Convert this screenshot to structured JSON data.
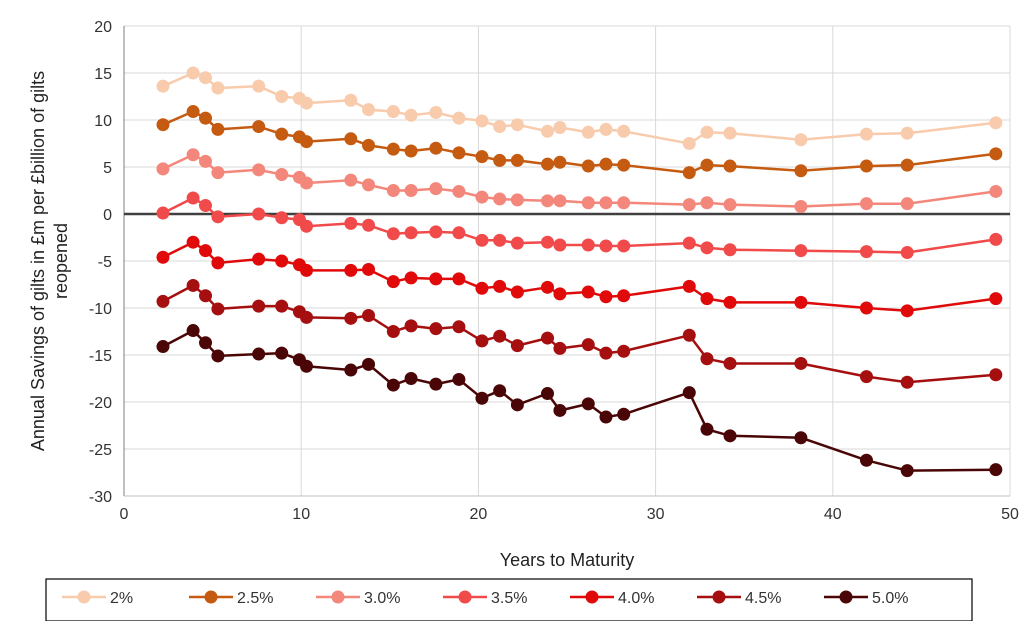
{
  "chart_data": {
    "type": "line",
    "title": "",
    "xlabel": "Years to Maturity",
    "ylabel": "Annual Savings of gilts in £m per £billion of gilts reopened",
    "ylabel_lines": [
      "Annual Savings of gilts in £m per £billion of gilts",
      "reopened"
    ],
    "xlim": [
      0,
      50
    ],
    "ylim": [
      -30,
      20
    ],
    "x_ticks": [
      0,
      10,
      20,
      30,
      40,
      50
    ],
    "y_ticks": [
      -30,
      -25,
      -20,
      -15,
      -10,
      -5,
      0,
      5,
      10,
      15,
      20
    ],
    "grid": true,
    "legend_position": "bottom",
    "x": [
      2.2,
      3.9,
      4.6,
      5.3,
      7.6,
      8.9,
      9.9,
      10.3,
      12.8,
      13.8,
      15.2,
      16.2,
      17.6,
      18.9,
      20.2,
      21.2,
      22.2,
      23.9,
      24.6,
      26.2,
      27.2,
      28.2,
      31.9,
      32.9,
      34.2,
      38.2,
      41.9,
      44.2,
      49.2
    ],
    "series": [
      {
        "name": "2%",
        "color": "#F8CBAD",
        "values": [
          13.6,
          15.0,
          14.5,
          13.4,
          13.6,
          12.5,
          12.3,
          11.8,
          12.1,
          11.1,
          10.9,
          10.5,
          10.8,
          10.2,
          9.9,
          9.3,
          9.5,
          8.8,
          9.2,
          8.7,
          9.0,
          8.8,
          7.5,
          8.7,
          8.6,
          7.9,
          8.5,
          8.6,
          9.7
        ]
      },
      {
        "name": "2.5%",
        "color": "#C55A11",
        "values": [
          9.5,
          10.9,
          10.2,
          9.0,
          9.3,
          8.5,
          8.2,
          7.7,
          8.0,
          7.3,
          6.9,
          6.7,
          7.0,
          6.5,
          6.1,
          5.7,
          5.7,
          5.3,
          5.5,
          5.1,
          5.3,
          5.2,
          4.4,
          5.2,
          5.1,
          4.6,
          5.1,
          5.2,
          6.4
        ]
      },
      {
        "name": "3.0%",
        "color": "#F4877C",
        "values": [
          4.8,
          6.3,
          5.6,
          4.4,
          4.7,
          4.2,
          3.9,
          3.3,
          3.6,
          3.1,
          2.5,
          2.5,
          2.7,
          2.4,
          1.8,
          1.6,
          1.5,
          1.4,
          1.4,
          1.2,
          1.2,
          1.2,
          1.0,
          1.2,
          1.0,
          0.8,
          1.1,
          1.1,
          2.4
        ]
      },
      {
        "name": "3.5%",
        "color": "#F14A4A",
        "values": [
          0.1,
          1.7,
          0.9,
          -0.3,
          0.0,
          -0.4,
          -0.6,
          -1.3,
          -1.0,
          -1.2,
          -2.1,
          -2.0,
          -1.9,
          -2.0,
          -2.8,
          -2.8,
          -3.1,
          -3.0,
          -3.3,
          -3.3,
          -3.4,
          -3.4,
          -3.1,
          -3.6,
          -3.8,
          -3.9,
          -4.0,
          -4.1,
          -2.7
        ]
      },
      {
        "name": "4.0%",
        "color": "#E00A0A",
        "values": [
          -4.6,
          -3.0,
          -3.9,
          -5.2,
          -4.8,
          -5.0,
          -5.4,
          -6.0,
          -6.0,
          -5.9,
          -7.2,
          -6.8,
          -6.9,
          -6.9,
          -7.9,
          -7.7,
          -8.3,
          -7.8,
          -8.5,
          -8.3,
          -8.8,
          -8.7,
          -7.7,
          -9.0,
          -9.4,
          -9.4,
          -10.0,
          -10.3,
          -9.0
        ]
      },
      {
        "name": "4.5%",
        "color": "#A50F0F",
        "values": [
          -9.3,
          -7.6,
          -8.7,
          -10.1,
          -9.8,
          -9.8,
          -10.4,
          -11.0,
          -11.1,
          -10.8,
          -12.5,
          -11.9,
          -12.2,
          -12.0,
          -13.5,
          -13.0,
          -14.0,
          -13.2,
          -14.3,
          -13.9,
          -14.8,
          -14.6,
          -12.9,
          -15.4,
          -15.9,
          -15.9,
          -17.3,
          -17.9,
          -17.1
        ]
      },
      {
        "name": "5.0%",
        "color": "#4A0606",
        "values": [
          -14.1,
          -12.4,
          -13.7,
          -15.1,
          -14.9,
          -14.8,
          -15.5,
          -16.2,
          -16.6,
          -16.0,
          -18.2,
          -17.5,
          -18.1,
          -17.6,
          -19.6,
          -18.8,
          -20.3,
          -19.1,
          -20.9,
          -20.2,
          -21.6,
          -21.3,
          -19.0,
          -22.9,
          -23.6,
          -23.8,
          -26.2,
          -27.3,
          -27.2
        ]
      }
    ]
  }
}
